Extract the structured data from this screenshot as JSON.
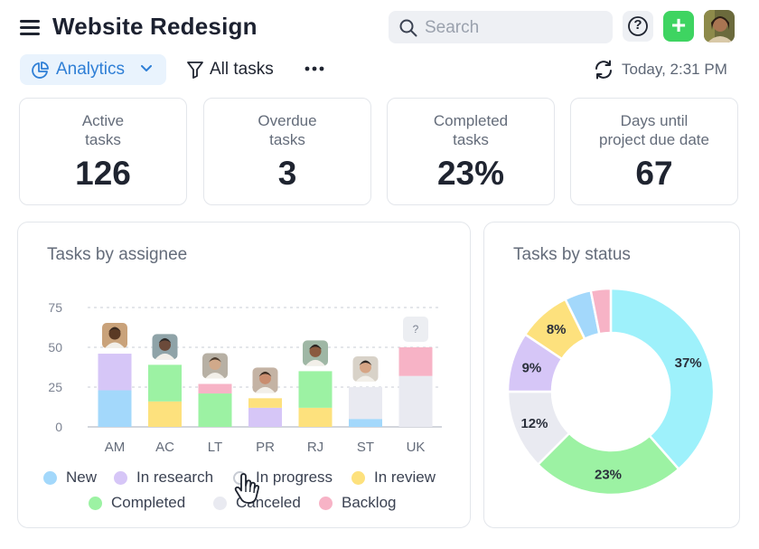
{
  "header": {
    "title": "Website Redesign",
    "search_placeholder": "Search",
    "help_symbol": "?",
    "add_symbol": "+"
  },
  "toolbar": {
    "view_label": "Analytics",
    "filter_label": "All tasks",
    "refresh_text": "Today, 2:31 PM"
  },
  "stats": [
    {
      "label": "Active\ntasks",
      "value": "126"
    },
    {
      "label": "Overdue\ntasks",
      "value": "3"
    },
    {
      "label": "Completed\ntasks",
      "value": "23%"
    },
    {
      "label": "Days until\nproject due date",
      "value": "67"
    }
  ],
  "colors": {
    "new": "#a3d8fb",
    "in_research": "#d6c6f7",
    "in_progress": "#ffffff",
    "in_review": "#fde17d",
    "completed": "#9cf2a3",
    "canceled": "#e9eaf1",
    "backlog": "#f7b3c6",
    "progress_cyan": "#9ef1fb",
    "accent_blue": "#2f7fd6",
    "add_green": "#3ed461"
  },
  "chart_data": [
    {
      "type": "bar",
      "stacked": true,
      "title": "Tasks by assignee",
      "categories": [
        "AM",
        "AC",
        "LT",
        "PR",
        "RJ",
        "ST",
        "UK"
      ],
      "yticks": [
        "0",
        "25",
        "50",
        "75"
      ],
      "ylim": [
        0,
        75
      ],
      "unknown_avatar_symbol": "?",
      "series": [
        {
          "name": "New",
          "key": "new",
          "values": [
            23,
            0,
            0,
            0,
            0,
            5,
            0
          ]
        },
        {
          "name": "In research",
          "key": "in_research",
          "values": [
            23,
            0,
            0,
            12,
            0,
            0,
            0
          ]
        },
        {
          "name": "In progress",
          "key": "in_progress",
          "values": [
            0,
            0,
            0,
            0,
            0,
            0,
            0
          ]
        },
        {
          "name": "In review",
          "key": "in_review",
          "values": [
            0,
            16,
            0,
            6,
            12,
            0,
            0
          ]
        },
        {
          "name": "Completed",
          "key": "completed",
          "values": [
            0,
            23,
            21,
            0,
            23,
            0,
            0
          ]
        },
        {
          "name": "Canceled",
          "key": "canceled",
          "values": [
            0,
            0,
            0,
            0,
            0,
            20,
            32
          ]
        },
        {
          "name": "Backlog",
          "key": "backlog",
          "values": [
            0,
            0,
            6,
            0,
            0,
            0,
            18
          ]
        }
      ]
    },
    {
      "type": "pie",
      "donut": true,
      "title": "Tasks by status",
      "slices": [
        {
          "name": "In progress",
          "key": "progress_cyan",
          "value": 37,
          "label": "37%"
        },
        {
          "name": "Completed",
          "key": "completed",
          "value": 23,
          "label": "23%"
        },
        {
          "name": "Canceled",
          "key": "canceled",
          "value": 12,
          "label": "12%"
        },
        {
          "name": "In research",
          "key": "in_research",
          "value": 9,
          "label": "9%"
        },
        {
          "name": "In review",
          "key": "in_review",
          "value": 8,
          "label": "8%"
        },
        {
          "name": "New",
          "key": "new",
          "value": 4,
          "label": ""
        },
        {
          "name": "Backlog",
          "key": "backlog",
          "value": 3,
          "label": ""
        }
      ]
    }
  ],
  "legend": [
    {
      "name": "New",
      "key": "new"
    },
    {
      "name": "In research",
      "key": "in_research"
    },
    {
      "name": "In progress",
      "key": "in_progress"
    },
    {
      "name": "In review",
      "key": "in_review"
    },
    {
      "name": "Completed",
      "key": "completed"
    },
    {
      "name": "Canceled",
      "key": "canceled"
    },
    {
      "name": "Backlog",
      "key": "backlog"
    }
  ]
}
